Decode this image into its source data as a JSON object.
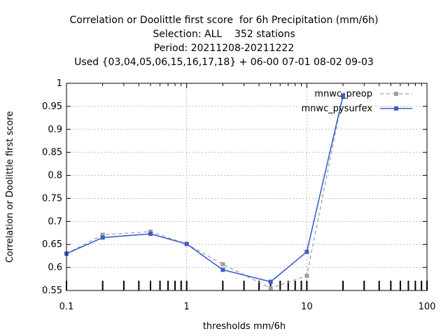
{
  "chart_data": {
    "type": "line",
    "title_lines": [
      "Correlation or Doolittle first score  for 6h Precipitation (mm/6h)",
      "Selection: ALL    352 stations",
      "Period: 20211208-20211222",
      "Used {03,04,05,06,15,16,17,18} + 06-00 07-01 08-02 09-03"
    ],
    "xlabel": "thresholds mm/6h",
    "ylabel": "Correlation or Doolittle first score",
    "x_scale": "log",
    "xlim": [
      0.1,
      100
    ],
    "ylim": [
      0.55,
      1
    ],
    "x_ticks": [
      0.1,
      1,
      10,
      100
    ],
    "x_tick_labels": [
      "0.1",
      "1",
      "10",
      "100"
    ],
    "y_ticks": [
      0.55,
      0.6,
      0.65,
      0.7,
      0.75,
      0.8,
      0.85,
      0.9,
      0.95,
      1
    ],
    "y_tick_labels": [
      "0.55",
      "0.6",
      "0.65",
      "0.7",
      "0.75",
      "0.8",
      "0.85",
      "0.9",
      "0.95",
      "1"
    ],
    "grid": true,
    "legend_position": "top-right",
    "x": [
      0.1,
      0.2,
      0.5,
      1,
      2,
      5,
      10,
      20
    ],
    "series": [
      {
        "name": "mnwc_preop",
        "color": "#a0a0a0",
        "dash": true,
        "values": [
          0.63,
          0.671,
          0.678,
          0.651,
          0.607,
          0.555,
          0.582,
          0.975
        ]
      },
      {
        "name": "mnwc_pysurfex",
        "color": "#3a5fcd",
        "dash": false,
        "values": [
          0.63,
          0.665,
          0.673,
          0.651,
          0.595,
          0.569,
          0.634,
          0.973
        ]
      }
    ]
  }
}
